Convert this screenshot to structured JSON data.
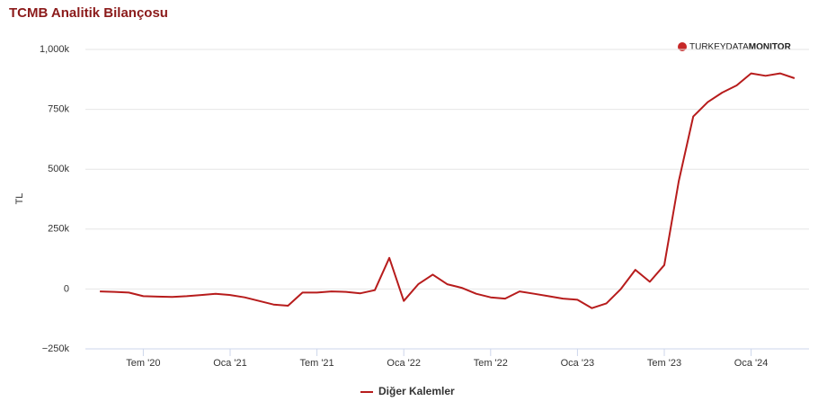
{
  "chart_data": {
    "type": "line",
    "title": "TCMB Analitik Bilançosu",
    "watermark": [
      "TURKEYDATA",
      "MONITOR"
    ],
    "y_label": "TL",
    "x": [
      "2020-04",
      "2020-05",
      "2020-06",
      "2020-07",
      "2020-08",
      "2020-09",
      "2020-10",
      "2020-11",
      "2020-12",
      "2021-01",
      "2021-02",
      "2021-03",
      "2021-04",
      "2021-05",
      "2021-06",
      "2021-07",
      "2021-08",
      "2021-09",
      "2021-10",
      "2021-11",
      "2021-12",
      "2022-01",
      "2022-02",
      "2022-03",
      "2022-04",
      "2022-05",
      "2022-06",
      "2022-07",
      "2022-08",
      "2022-09",
      "2022-10",
      "2022-11",
      "2022-12",
      "2023-01",
      "2023-02",
      "2023-03",
      "2023-04",
      "2023-05",
      "2023-06",
      "2023-07",
      "2023-08",
      "2023-09",
      "2023-10",
      "2023-11",
      "2023-12",
      "2024-01",
      "2024-02",
      "2024-03",
      "2024-04"
    ],
    "series": [
      {
        "name": "Diğer Kalemler",
        "color": "#b71c1c",
        "values": [
          -10000,
          -12000,
          -15000,
          -30000,
          -32000,
          -33000,
          -30000,
          -25000,
          -20000,
          -25000,
          -35000,
          -50000,
          -65000,
          -70000,
          -15000,
          -15000,
          -10000,
          -12000,
          -18000,
          -5000,
          130000,
          -50000,
          20000,
          60000,
          20000,
          5000,
          -20000,
          -35000,
          -40000,
          -10000,
          -20000,
          -30000,
          -40000,
          -45000,
          -80000,
          -60000,
          0,
          80000,
          30000,
          100000,
          450000,
          720000,
          780000,
          820000,
          850000,
          900000,
          890000,
          900000,
          880000
        ]
      }
    ],
    "xlim": [
      "2020-03",
      "2024-05"
    ],
    "xticks": [
      {
        "value": "2020-07",
        "label": "Tem '20"
      },
      {
        "value": "2021-01",
        "label": "Oca '21"
      },
      {
        "value": "2021-07",
        "label": "Tem '21"
      },
      {
        "value": "2022-01",
        "label": "Oca '22"
      },
      {
        "value": "2022-07",
        "label": "Tem '22"
      },
      {
        "value": "2023-01",
        "label": "Oca '23"
      },
      {
        "value": "2023-07",
        "label": "Tem '23"
      },
      {
        "value": "2024-01",
        "label": "Oca '24"
      }
    ],
    "ylim": [
      -250000,
      1000000
    ],
    "yticks": [
      {
        "value": -250000,
        "label": "−250k"
      },
      {
        "value": 0,
        "label": "0"
      },
      {
        "value": 250000,
        "label": "250k"
      },
      {
        "value": 500000,
        "label": "500k"
      },
      {
        "value": 750000,
        "label": "750k"
      },
      {
        "value": 1000000,
        "label": "1,000k"
      }
    ],
    "grid": true
  }
}
